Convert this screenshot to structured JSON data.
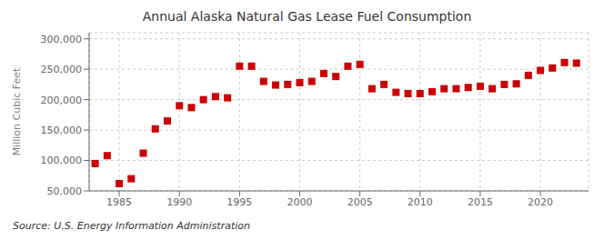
{
  "chart_data": {
    "type": "scatter",
    "title": "Annual Alaska Natural Gas Lease Fuel Consumption",
    "ylabel": "Million Cubic Feet",
    "annotations": [
      "Source: U.S. Energy Information Administration"
    ],
    "color": "#CC0000",
    "marker": "square",
    "grid": true,
    "xlim": [
      1982.5,
      2024
    ],
    "xticks": [
      1985,
      1990,
      1995,
      2000,
      2005,
      2010,
      2015,
      2020
    ],
    "ylim": [
      50000,
      310000
    ],
    "yticks": [
      {
        "value": 50000,
        "label": "50,000"
      },
      {
        "value": 100000,
        "label": "100,000"
      },
      {
        "value": 150000,
        "label": "150,000"
      },
      {
        "value": 200000,
        "label": "200,000"
      },
      {
        "value": 250000,
        "label": "250,000"
      },
      {
        "value": 300000,
        "label": "300,000"
      }
    ],
    "x": [
      1983,
      1984,
      1985,
      1986,
      1987,
      1988,
      1989,
      1990,
      1991,
      1992,
      1993,
      1994,
      1995,
      1996,
      1997,
      1998,
      1999,
      2000,
      2001,
      2002,
      2003,
      2004,
      2005,
      2006,
      2007,
      2008,
      2009,
      2010,
      2011,
      2012,
      2013,
      2014,
      2015,
      2016,
      2017,
      2018,
      2019,
      2020,
      2021,
      2022,
      2023
    ],
    "values": [
      95000,
      108000,
      62000,
      70000,
      112000,
      152000,
      165000,
      190000,
      187000,
      200000,
      205000,
      203000,
      255000,
      255000,
      230000,
      224000,
      225000,
      228000,
      230000,
      243000,
      238000,
      255000,
      258000,
      218000,
      225000,
      212000,
      210000,
      210000,
      213000,
      218000,
      218000,
      220000,
      222000,
      218000,
      225000,
      226000,
      240000,
      248000,
      252000,
      261000,
      260000
    ]
  }
}
